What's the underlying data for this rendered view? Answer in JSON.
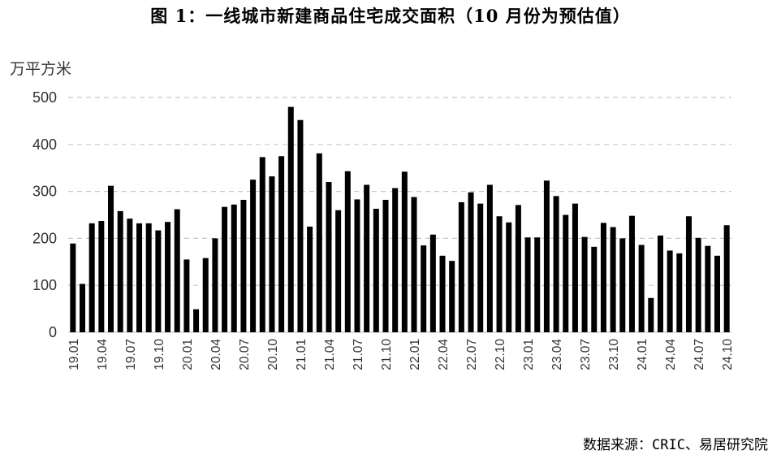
{
  "chart_data": {
    "type": "bar",
    "title": "图 1：一线城市新建商品住宅成交面积（10 月份为预估值）",
    "ylabel": "万平方米",
    "source": "数据来源：CRIC、易居研究院",
    "ylim": [
      0,
      500
    ],
    "yticks": [
      0,
      100,
      200,
      300,
      400,
      500
    ],
    "grid": "horizontal-dashed",
    "bar_color": "#000000",
    "tick_labels": [
      "19.01",
      "19.04",
      "19.07",
      "19.10",
      "20.01",
      "20.04",
      "20.07",
      "20.10",
      "21.01",
      "21.04",
      "21.07",
      "21.10",
      "22.01",
      "22.04",
      "22.07",
      "22.10",
      "23.01",
      "23.04",
      "23.07",
      "23.10",
      "24.01",
      "24.04",
      "24.07",
      "24.10"
    ],
    "categories": [
      "19.01",
      "19.02",
      "19.03",
      "19.04",
      "19.05",
      "19.06",
      "19.07",
      "19.08",
      "19.09",
      "19.10",
      "19.11",
      "19.12",
      "20.01",
      "20.02",
      "20.03",
      "20.04",
      "20.05",
      "20.06",
      "20.07",
      "20.08",
      "20.09",
      "20.10",
      "20.11",
      "20.12",
      "21.01",
      "21.02",
      "21.03",
      "21.04",
      "21.05",
      "21.06",
      "21.07",
      "21.08",
      "21.09",
      "21.10",
      "21.11",
      "21.12",
      "22.01",
      "22.02",
      "22.03",
      "22.04",
      "22.05",
      "22.06",
      "22.07",
      "22.08",
      "22.09",
      "22.10",
      "22.11",
      "22.12",
      "23.01",
      "23.02",
      "23.03",
      "23.04",
      "23.05",
      "23.06",
      "23.07",
      "23.08",
      "23.09",
      "23.10",
      "23.11",
      "23.12",
      "24.01",
      "24.02",
      "24.03",
      "24.04",
      "24.05",
      "24.06",
      "24.07",
      "24.08",
      "24.09",
      "24.10"
    ],
    "values": [
      189,
      103,
      232,
      237,
      312,
      258,
      242,
      232,
      232,
      217,
      235,
      262,
      155,
      49,
      158,
      200,
      267,
      272,
      282,
      325,
      373,
      332,
      375,
      480,
      452,
      225,
      381,
      320,
      260,
      343,
      283,
      314,
      263,
      282,
      307,
      342,
      288,
      185,
      208,
      163,
      152,
      277,
      298,
      274,
      314,
      247,
      234,
      271,
      202,
      202,
      323,
      290,
      250,
      274,
      203,
      182,
      233,
      224,
      200,
      248,
      186,
      73,
      206,
      174,
      168,
      247,
      201,
      184,
      163,
      228
    ]
  }
}
